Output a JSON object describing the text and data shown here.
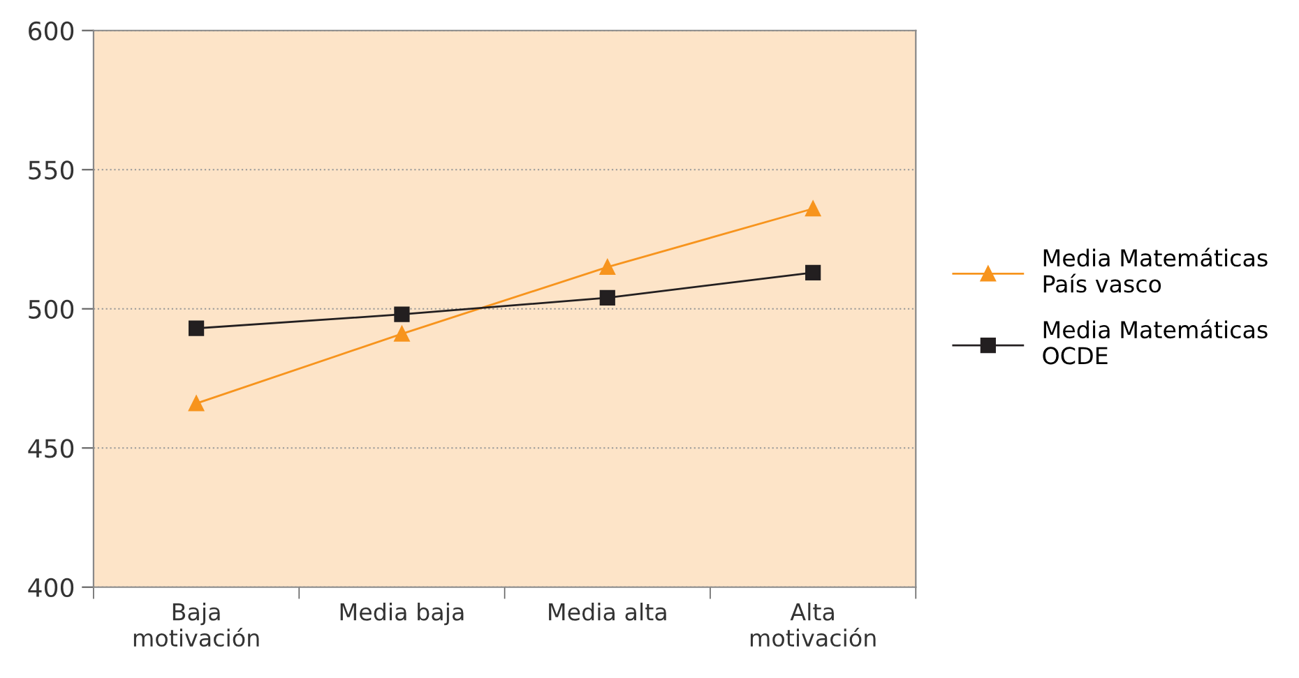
{
  "chart_data": {
    "type": "line",
    "categories": [
      "Baja\nmotivación",
      "Media baja",
      "Media alta",
      "Alta\nmotivación"
    ],
    "series": [
      {
        "name": "Media Matemáticas\nPaís vasco",
        "color": "#f7941d",
        "marker": "triangle",
        "values": [
          466,
          491,
          515,
          536
        ]
      },
      {
        "name": "Media Matemáticas\nOCDE",
        "color": "#231f20",
        "marker": "square",
        "values": [
          493,
          498,
          504,
          513
        ]
      }
    ],
    "ylim": [
      400,
      600
    ],
    "yticks": [
      400,
      450,
      500,
      550,
      600
    ],
    "grid": "y",
    "legend": "right",
    "line_style": "solid"
  }
}
